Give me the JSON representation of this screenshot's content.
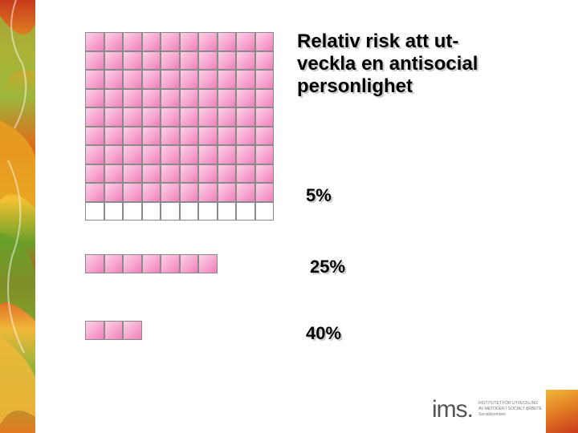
{
  "title": "Relativ risk att ut-\nveckla en antisocial\npersonlighet",
  "groups": [
    {
      "label": "5%",
      "filled_cells": 90,
      "total_cells": 100
    },
    {
      "label": "25%",
      "filled_cells": 7,
      "total_cells": 7
    },
    {
      "label": "40%",
      "filled_cells": 3,
      "total_cells": 3
    }
  ],
  "logo": {
    "name": "ims.",
    "subtitle": "INSTITUTET FÖR UTVECKLING\nAV METODER I SOCIALT ARBETE\nSocialstyrelsen"
  },
  "colors": {
    "cell_fill": "#f7a6cf",
    "cell_border": "#8a8a8a",
    "empty_cell": "#ffffff"
  }
}
